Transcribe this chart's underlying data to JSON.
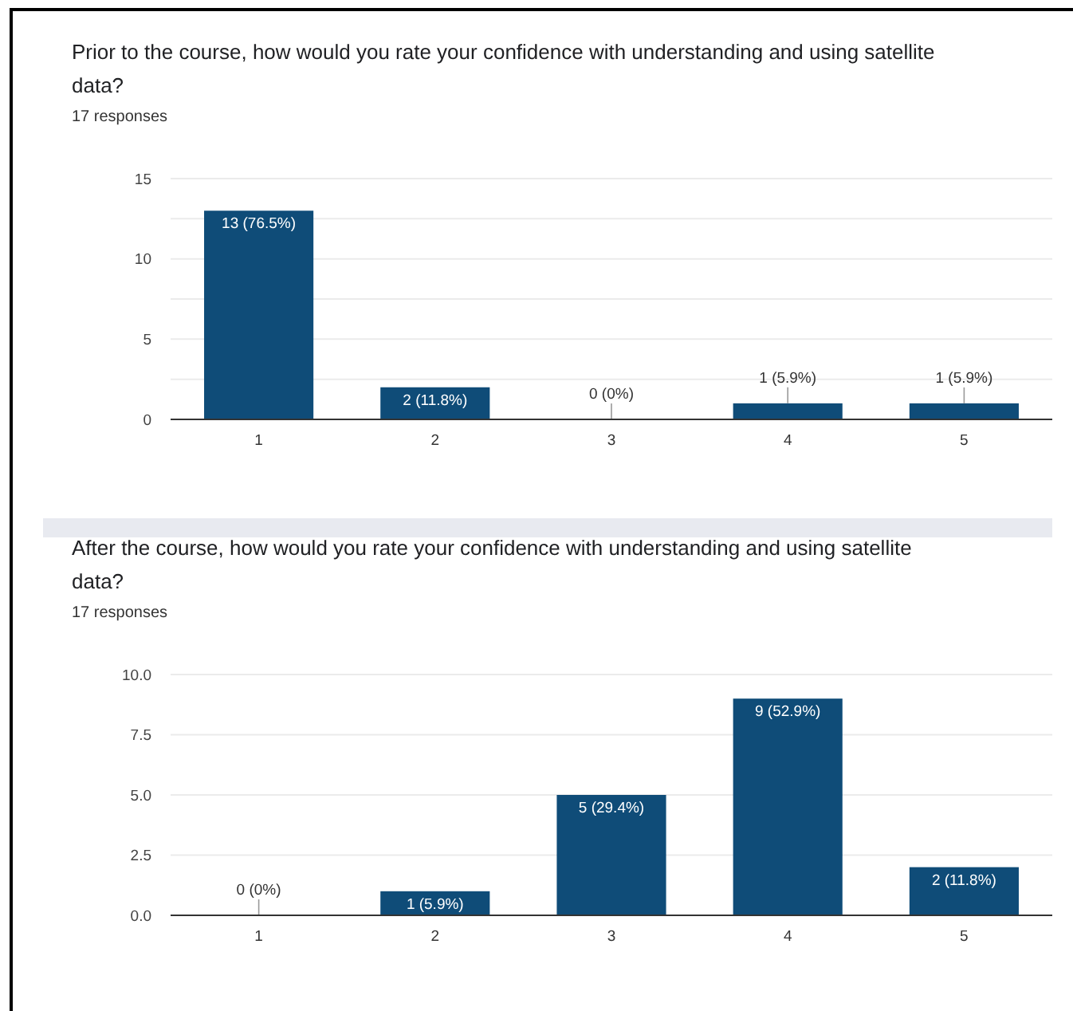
{
  "chart_data": [
    {
      "type": "bar",
      "title": "Prior to the course, how would you rate your confidence with understanding and using satellite data?",
      "subtitle": "17 responses",
      "categories": [
        "1",
        "2",
        "3",
        "4",
        "5"
      ],
      "values": [
        13,
        2,
        0,
        1,
        1
      ],
      "color": "#0f4c78",
      "value_labels": [
        "13 (76.5%)",
        "2 (11.8%)",
        "0 (0%)",
        "1 (5.9%)",
        "1 (5.9%)"
      ],
      "ylim": [
        0,
        15
      ],
      "yticks": [
        0,
        {
          "value": 2.5,
          "label": null
        },
        5,
        {
          "value": 7.5,
          "label": null
        },
        10,
        {
          "value": 12.5,
          "label": null
        },
        15
      ],
      "grid": "y"
    },
    {
      "type": "bar",
      "title": "After the course, how would you rate your confidence with understanding and using satellite data?",
      "subtitle": "17 responses",
      "categories": [
        "1",
        "2",
        "3",
        "4",
        "5"
      ],
      "values": [
        0,
        1,
        5,
        9,
        2
      ],
      "color": "#0f4c78",
      "value_labels": [
        "0 (0%)",
        "1 (5.9%)",
        "5 (29.4%)",
        "9 (52.9%)",
        "2 (11.8%)"
      ],
      "ylim": [
        0,
        10
      ],
      "yticks": [
        {
          "value": 0,
          "label": "0.0"
        },
        {
          "value": 2.5,
          "label": "2.5"
        },
        {
          "value": 5,
          "label": "5.0"
        },
        {
          "value": 7.5,
          "label": "7.5"
        },
        {
          "value": 10,
          "label": "10.0"
        }
      ],
      "grid": "y"
    }
  ]
}
